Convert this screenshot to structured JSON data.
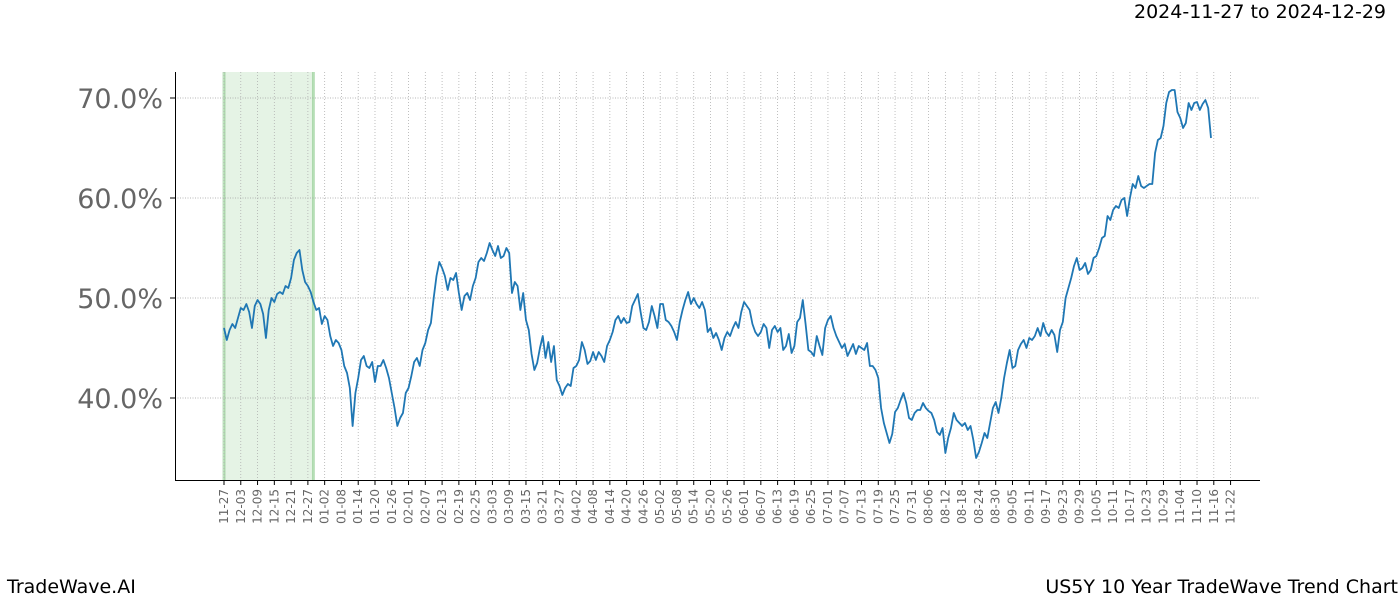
{
  "header": {
    "date_range": "2024-11-27 to 2024-12-29"
  },
  "footer": {
    "left": "TradeWave.AI",
    "right": "US5Y 10 Year TradeWave Trend Chart"
  },
  "chart_data": {
    "type": "line",
    "title": "",
    "xlabel": "",
    "ylabel": "",
    "ylim": [
      0.318,
      0.726
    ],
    "y_ticks": [
      0.4,
      0.5,
      0.6,
      0.7
    ],
    "y_tick_labels": [
      "40.0%",
      "50.0%",
      "60.0%",
      "70.0%"
    ],
    "x_tick_labels": [
      "11-27",
      "12-03",
      "12-09",
      "12-15",
      "12-21",
      "12-27",
      "01-02",
      "01-08",
      "01-14",
      "01-20",
      "01-26",
      "02-01",
      "02-07",
      "02-13",
      "02-19",
      "02-25",
      "03-03",
      "03-09",
      "03-15",
      "03-21",
      "03-27",
      "04-02",
      "04-08",
      "04-14",
      "04-20",
      "04-26",
      "05-02",
      "05-08",
      "05-14",
      "05-20",
      "05-26",
      "06-01",
      "06-07",
      "06-13",
      "06-19",
      "06-25",
      "07-01",
      "07-07",
      "07-13",
      "07-19",
      "07-25",
      "07-31",
      "08-06",
      "08-12",
      "08-18",
      "08-24",
      "08-30",
      "09-05",
      "09-11",
      "09-17",
      "09-23",
      "09-29",
      "10-05",
      "10-11",
      "10-17",
      "10-23",
      "10-29",
      "11-04",
      "11-10",
      "11-16",
      "11-22"
    ],
    "x_tick_step_days": 6,
    "highlight": {
      "start_index": 0,
      "end_index": 32,
      "color": "#2ca02c"
    },
    "grid": true,
    "line_color": "#1f77b4",
    "series": [
      {
        "values": [
          0.47,
          0.458,
          0.468,
          0.474,
          0.47,
          0.48,
          0.49,
          0.488,
          0.494,
          0.486,
          0.47,
          0.492,
          0.498,
          0.494,
          0.484,
          0.46,
          0.488,
          0.5,
          0.496,
          0.504,
          0.506,
          0.504,
          0.512,
          0.51,
          0.52,
          0.538,
          0.545,
          0.548,
          0.528,
          0.516,
          0.512,
          0.506,
          0.496,
          0.488,
          0.49,
          0.474,
          0.482,
          0.478,
          0.462,
          0.452,
          0.458,
          0.455,
          0.448,
          0.432,
          0.425,
          0.41,
          0.372,
          0.405,
          0.42,
          0.438,
          0.442,
          0.432,
          0.43,
          0.436,
          0.416,
          0.432,
          0.432,
          0.438,
          0.43,
          0.42,
          0.405,
          0.39,
          0.372,
          0.38,
          0.385,
          0.405,
          0.41,
          0.422,
          0.436,
          0.44,
          0.432,
          0.448,
          0.455,
          0.468,
          0.475,
          0.5,
          0.522,
          0.536,
          0.53,
          0.522,
          0.508,
          0.52,
          0.518,
          0.525,
          0.505,
          0.488,
          0.502,
          0.505,
          0.498,
          0.512,
          0.52,
          0.536,
          0.54,
          0.537,
          0.545,
          0.555,
          0.548,
          0.542,
          0.552,
          0.54,
          0.542,
          0.55,
          0.545,
          0.505,
          0.516,
          0.512,
          0.488,
          0.505,
          0.478,
          0.468,
          0.444,
          0.428,
          0.435,
          0.45,
          0.462,
          0.44,
          0.456,
          0.436,
          0.452,
          0.418,
          0.412,
          0.403,
          0.41,
          0.414,
          0.412,
          0.43,
          0.432,
          0.438,
          0.456,
          0.448,
          0.434,
          0.437,
          0.446,
          0.438,
          0.446,
          0.442,
          0.436,
          0.452,
          0.458,
          0.466,
          0.478,
          0.482,
          0.475,
          0.48,
          0.475,
          0.476,
          0.492,
          0.498,
          0.504,
          0.486,
          0.47,
          0.468,
          0.476,
          0.492,
          0.482,
          0.47,
          0.494,
          0.494,
          0.478,
          0.476,
          0.472,
          0.466,
          0.458,
          0.476,
          0.488,
          0.498,
          0.506,
          0.494,
          0.5,
          0.494,
          0.49,
          0.496,
          0.488,
          0.466,
          0.47,
          0.46,
          0.465,
          0.458,
          0.448,
          0.46,
          0.466,
          0.462,
          0.47,
          0.476,
          0.47,
          0.486,
          0.496,
          0.492,
          0.488,
          0.474,
          0.466,
          0.462,
          0.466,
          0.474,
          0.47,
          0.45,
          0.468,
          0.472,
          0.466,
          0.47,
          0.448,
          0.452,
          0.464,
          0.445,
          0.452,
          0.476,
          0.48,
          0.498,
          0.474,
          0.448,
          0.446,
          0.442,
          0.462,
          0.452,
          0.443,
          0.47,
          0.478,
          0.482,
          0.47,
          0.462,
          0.456,
          0.45,
          0.454,
          0.442,
          0.448,
          0.454,
          0.444,
          0.452,
          0.45,
          0.448,
          0.455,
          0.432,
          0.432,
          0.428,
          0.42,
          0.39,
          0.375,
          0.365,
          0.355,
          0.364,
          0.386,
          0.39,
          0.398,
          0.405,
          0.395,
          0.38,
          0.378,
          0.385,
          0.388,
          0.388,
          0.395,
          0.39,
          0.387,
          0.385,
          0.378,
          0.366,
          0.363,
          0.37,
          0.345,
          0.36,
          0.37,
          0.385,
          0.378,
          0.375,
          0.372,
          0.375,
          0.368,
          0.372,
          0.358,
          0.34,
          0.346,
          0.355,
          0.365,
          0.36,
          0.375,
          0.39,
          0.396,
          0.385,
          0.4,
          0.42,
          0.435,
          0.448,
          0.43,
          0.432,
          0.448,
          0.454,
          0.458,
          0.45,
          0.46,
          0.458,
          0.462,
          0.47,
          0.462,
          0.475,
          0.466,
          0.462,
          0.468,
          0.463,
          0.446,
          0.468,
          0.476,
          0.5,
          0.51,
          0.52,
          0.532,
          0.54,
          0.528,
          0.53,
          0.535,
          0.524,
          0.528,
          0.54,
          0.542,
          0.55,
          0.56,
          0.562,
          0.582,
          0.578,
          0.588,
          0.592,
          0.59,
          0.598,
          0.6,
          0.582,
          0.6,
          0.614,
          0.61,
          0.622,
          0.612,
          0.61,
          0.612,
          0.614,
          0.614,
          0.645,
          0.658,
          0.66,
          0.672,
          0.695,
          0.706,
          0.708,
          0.708,
          0.686,
          0.68,
          0.67,
          0.675,
          0.695,
          0.688,
          0.695,
          0.696,
          0.688,
          0.694,
          0.698,
          0.69,
          0.66
        ]
      }
    ]
  }
}
